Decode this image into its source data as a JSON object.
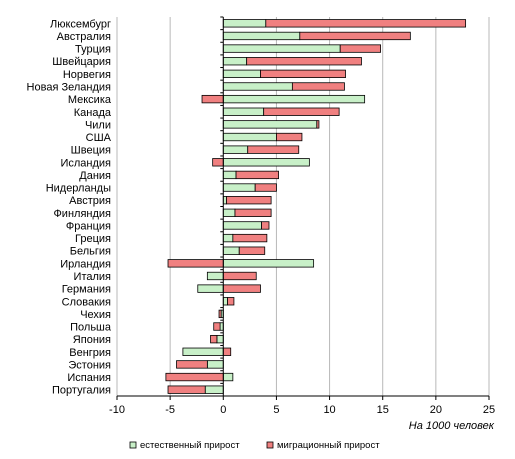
{
  "chart_data": {
    "type": "bar",
    "orientation": "horizontal",
    "stacked": true,
    "categories": [
      "Люксембург",
      "Австралия",
      "Турция",
      "Швейцария",
      "Норвегия",
      "Новая Зеландия",
      "Мексика",
      "Канада",
      "Чили",
      "США",
      "Швеция",
      "Исландия",
      "Дания",
      "Нидерланды",
      "Австрия",
      "Финляндия",
      "Франция",
      "Греция",
      "Бельгия",
      "Ирландия",
      "Италия",
      "Германия",
      "Словакия",
      "Чехия",
      "Польша",
      "Япония",
      "Венгрия",
      "Эстония",
      "Испания",
      "Португалия"
    ],
    "series": [
      {
        "name": "естественный прирост",
        "color": "#c8f0c8",
        "values": [
          4,
          7.2,
          11,
          2.2,
          3.5,
          6.5,
          13.3,
          3.8,
          8.8,
          5,
          2.3,
          8.1,
          1.2,
          3,
          0.3,
          1.1,
          3.6,
          0.9,
          1.5,
          8.5,
          -1.5,
          -2.4,
          0.4,
          -0.2,
          -0.3,
          -0.6,
          -3.8,
          -1.5,
          0.9,
          -1.7
        ]
      },
      {
        "name": "миграционный прирост",
        "color": "#f08080",
        "values": [
          18.8,
          10.4,
          3.8,
          10.8,
          8,
          4.9,
          -2,
          7.1,
          0.2,
          2.4,
          4.8,
          -1,
          4,
          2,
          4.2,
          3.4,
          0.7,
          3.2,
          2.4,
          -5.2,
          3.1,
          3.5,
          0.6,
          -0.2,
          -0.6,
          -0.6,
          0.7,
          -2.9,
          -5.4,
          -3.5
        ]
      }
    ],
    "xlim": [
      -10,
      25
    ],
    "xticks": [
      -10,
      -5,
      0,
      5,
      10,
      15,
      20,
      25
    ],
    "xlabel": "На 1000 человек",
    "title": "",
    "grid": "vertical",
    "legend": "bottom"
  }
}
